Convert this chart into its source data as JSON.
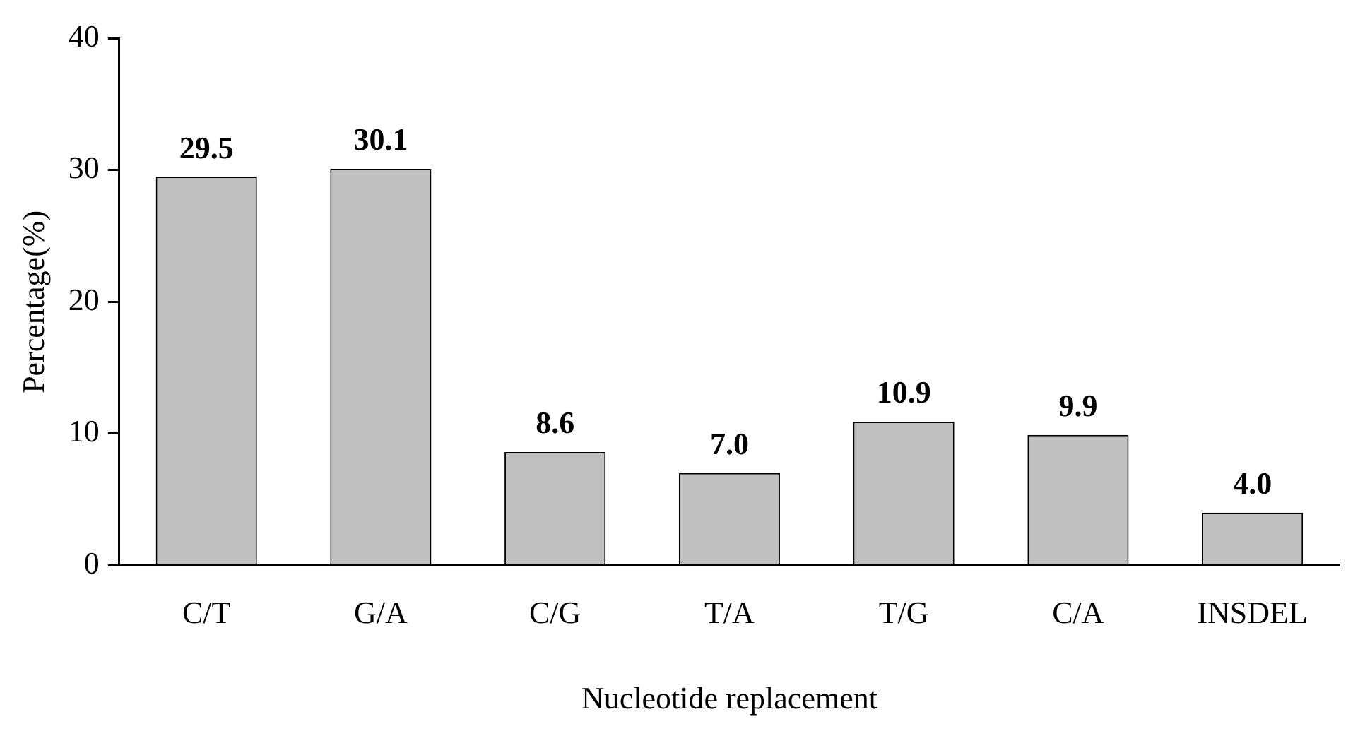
{
  "chart_data": {
    "type": "bar",
    "xlabel": "Nucleotide replacement",
    "ylabel": "Percentage(%)",
    "categories": [
      "C/T",
      "G/A",
      "C/G",
      "T/A",
      "T/G",
      "C/A",
      "INSDEL"
    ],
    "values": [
      29.5,
      30.1,
      8.6,
      7.0,
      10.9,
      9.9,
      4.0
    ],
    "value_labels": [
      "29.5",
      "30.1",
      "8.6",
      "7.0",
      "10.9",
      "9.9",
      "4.0"
    ],
    "color": "#c0c0c0",
    "ylim": [
      0,
      40
    ],
    "yticks": [
      0,
      10,
      20,
      30,
      40
    ],
    "grid": false,
    "legend": false
  }
}
